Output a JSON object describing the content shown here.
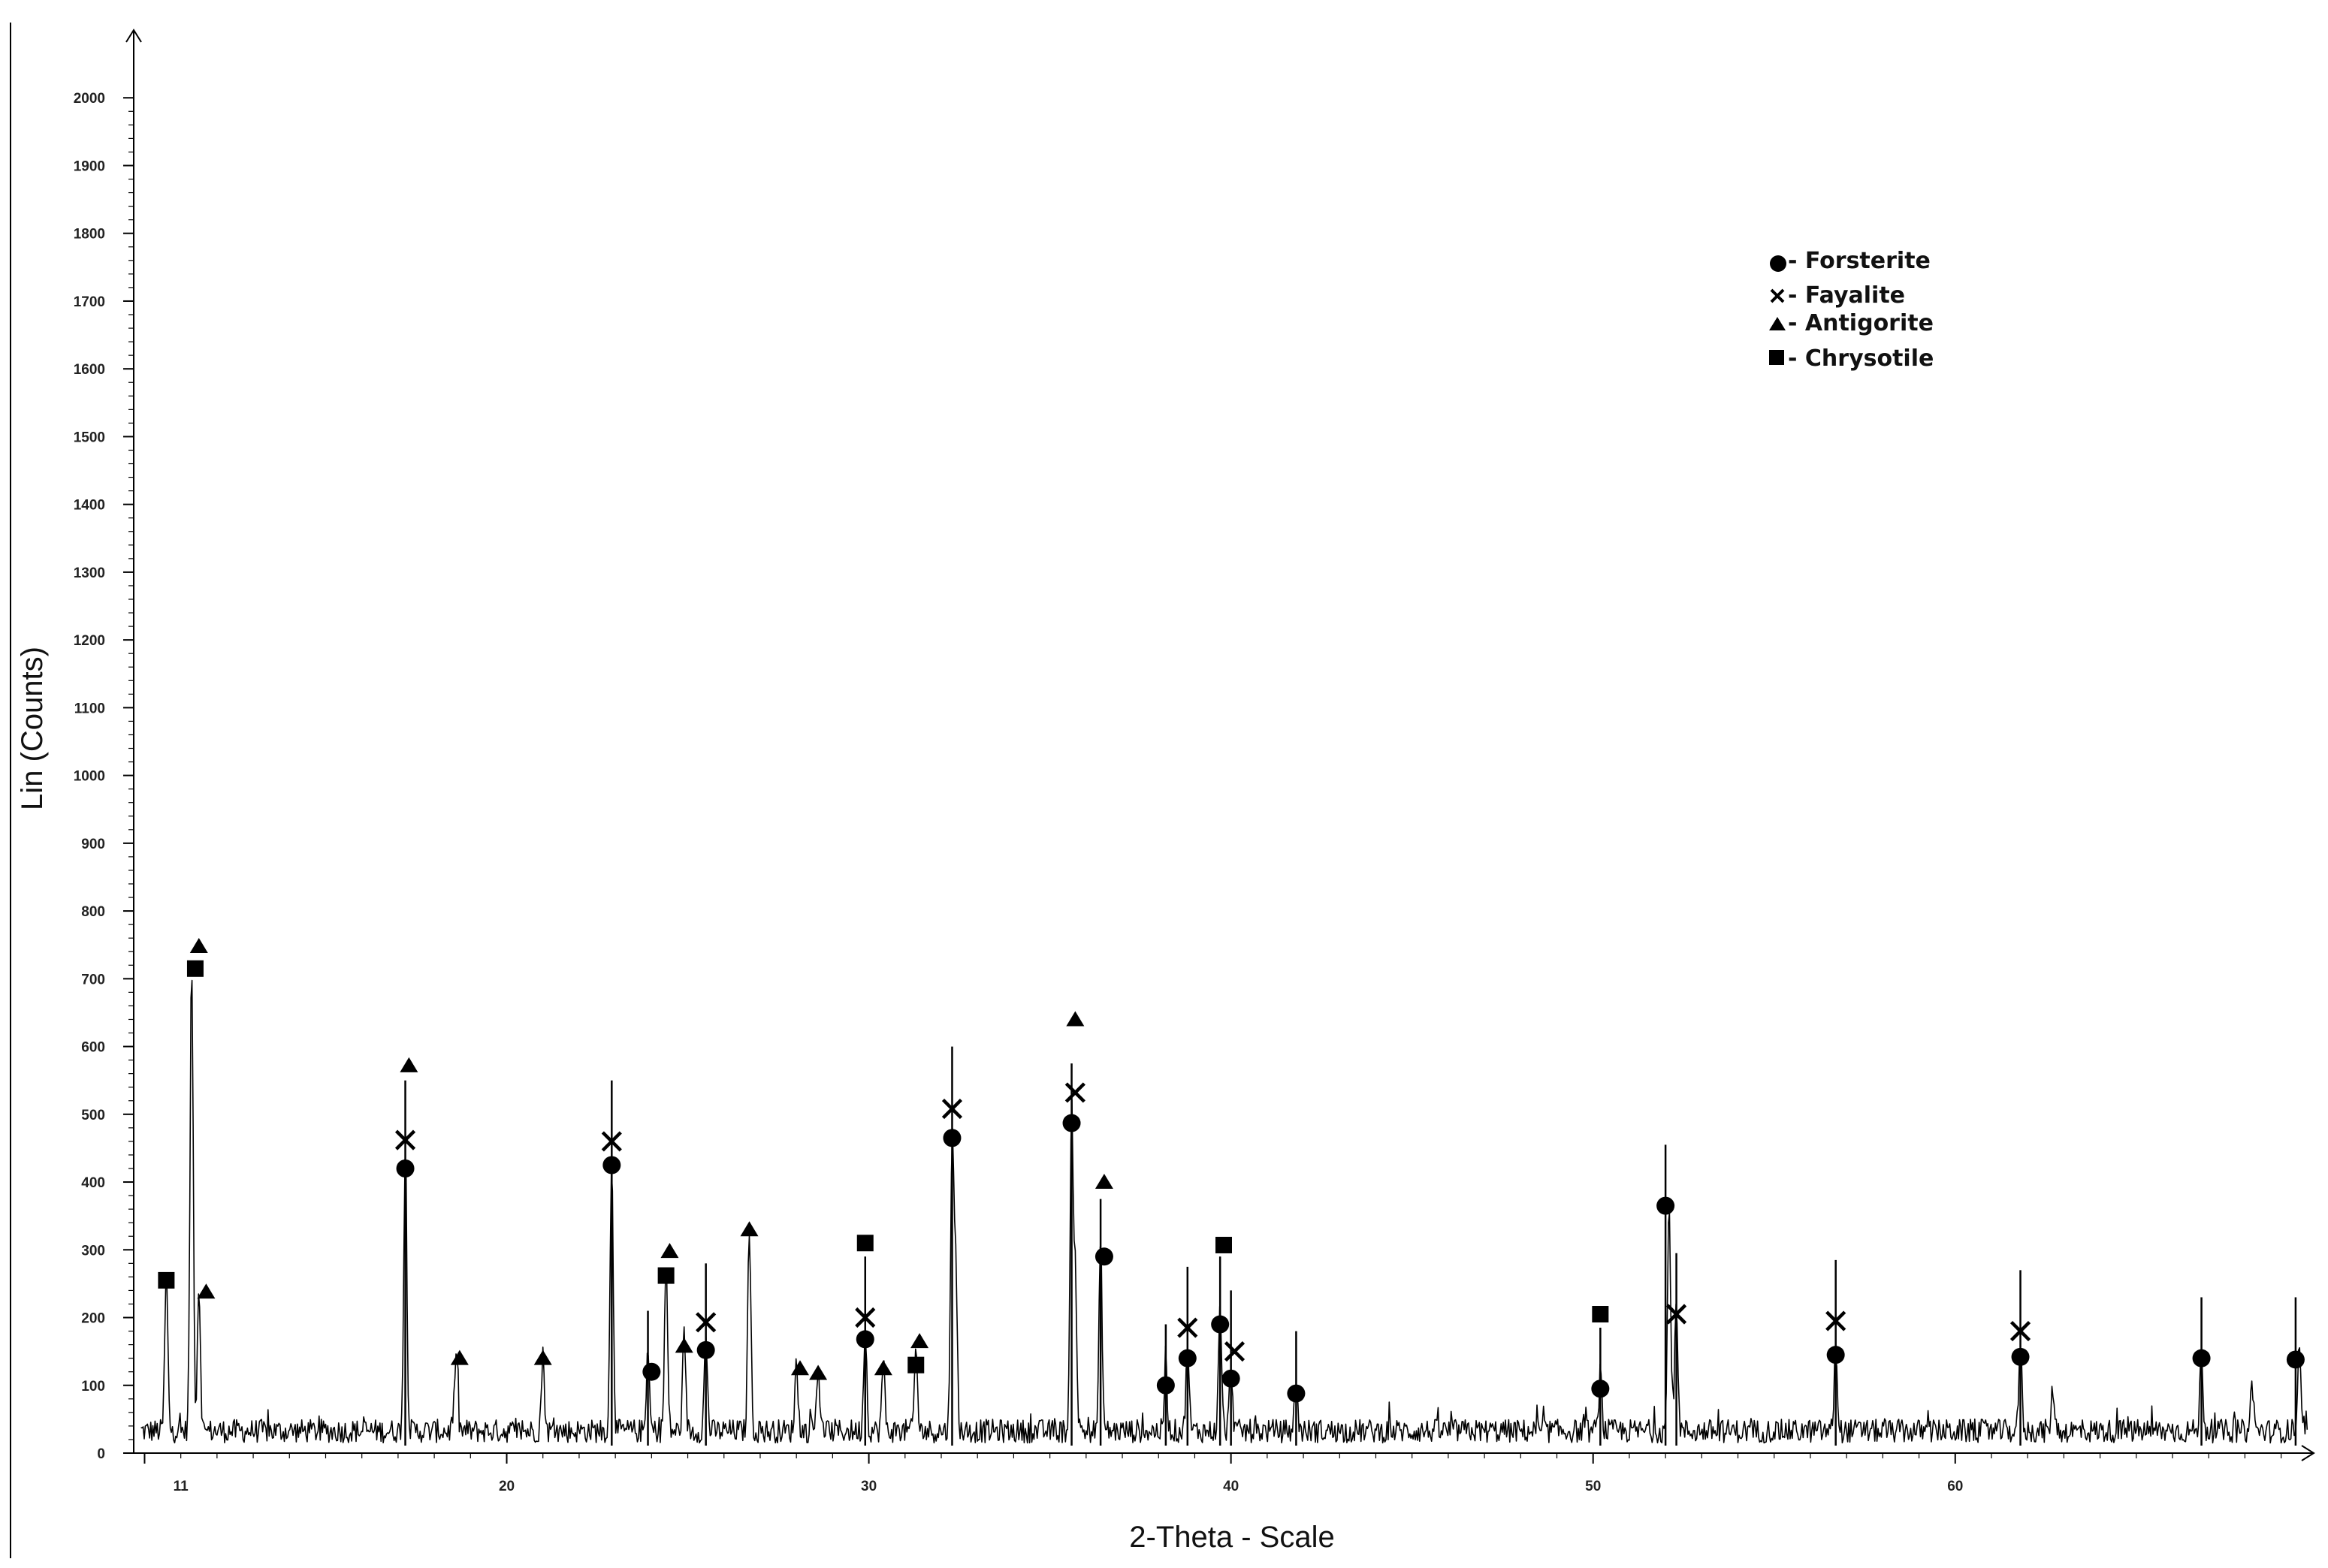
{
  "chart_data": {
    "type": "line",
    "title": "",
    "xlabel": "2-Theta - Scale",
    "ylabel": "Lin (Counts)",
    "xlim": [
      9.7,
      69.9
    ],
    "ylim": [
      0,
      2100
    ],
    "x_ticks": [
      11,
      20,
      30,
      40,
      50,
      60
    ],
    "y_ticks": [
      0,
      100,
      200,
      300,
      400,
      500,
      600,
      700,
      800,
      900,
      1000,
      1100,
      1200,
      1300,
      1400,
      1500,
      1600,
      1700,
      1800,
      1900,
      2000
    ],
    "grid": false,
    "baseline_counts": 25,
    "peaks": [
      {
        "x": 10.6,
        "y": 230
      },
      {
        "x": 11.3,
        "y": 695
      },
      {
        "x": 11.5,
        "y": 215
      },
      {
        "x": 17.2,
        "y": 410
      },
      {
        "x": 18.6,
        "y": 115
      },
      {
        "x": 21.0,
        "y": 110
      },
      {
        "x": 22.9,
        "y": 405
      },
      {
        "x": 23.9,
        "y": 110
      },
      {
        "x": 24.4,
        "y": 245
      },
      {
        "x": 24.9,
        "y": 130
      },
      {
        "x": 25.5,
        "y": 140
      },
      {
        "x": 26.7,
        "y": 305
      },
      {
        "x": 28.0,
        "y": 100
      },
      {
        "x": 28.6,
        "y": 95
      },
      {
        "x": 29.9,
        "y": 150
      },
      {
        "x": 30.4,
        "y": 100
      },
      {
        "x": 31.3,
        "y": 120
      },
      {
        "x": 32.3,
        "y": 440
      },
      {
        "x": 32.4,
        "y": 240
      },
      {
        "x": 35.6,
        "y": 460
      },
      {
        "x": 35.7,
        "y": 230
      },
      {
        "x": 36.4,
        "y": 275
      },
      {
        "x": 38.2,
        "y": 90
      },
      {
        "x": 38.8,
        "y": 125
      },
      {
        "x": 39.7,
        "y": 175
      },
      {
        "x": 40.0,
        "y": 95
      },
      {
        "x": 41.8,
        "y": 75
      },
      {
        "x": 50.2,
        "y": 80
      },
      {
        "x": 52.1,
        "y": 335
      },
      {
        "x": 52.3,
        "y": 190
      },
      {
        "x": 56.7,
        "y": 120
      },
      {
        "x": 61.8,
        "y": 120
      },
      {
        "x": 62.7,
        "y": 65
      },
      {
        "x": 66.8,
        "y": 115
      },
      {
        "x": 68.2,
        "y": 70
      },
      {
        "x": 69.5,
        "y": 115
      }
    ],
    "markers": [
      {
        "phase": "chrysotile",
        "x": 10.6,
        "y": 255
      },
      {
        "phase": "antigorite",
        "x": 11.5,
        "y": 748
      },
      {
        "phase": "chrysotile",
        "x": 11.4,
        "y": 715
      },
      {
        "phase": "antigorite",
        "x": 11.7,
        "y": 238
      },
      {
        "phase": "antigorite",
        "x": 17.3,
        "y": 572
      },
      {
        "phase": "fayalite",
        "x": 17.2,
        "y": 462
      },
      {
        "phase": "forsterite",
        "x": 17.2,
        "y": 420
      },
      {
        "phase": "antigorite",
        "x": 18.7,
        "y": 140
      },
      {
        "phase": "antigorite",
        "x": 21.0,
        "y": 140
      },
      {
        "phase": "fayalite",
        "x": 22.9,
        "y": 460
      },
      {
        "phase": "forsterite",
        "x": 22.9,
        "y": 425
      },
      {
        "phase": "forsterite",
        "x": 24.0,
        "y": 120
      },
      {
        "phase": "antigorite",
        "x": 24.5,
        "y": 298
      },
      {
        "phase": "chrysotile",
        "x": 24.4,
        "y": 262
      },
      {
        "phase": "antigorite",
        "x": 24.9,
        "y": 158
      },
      {
        "phase": "fayalite",
        "x": 25.5,
        "y": 193
      },
      {
        "phase": "forsterite",
        "x": 25.5,
        "y": 152
      },
      {
        "phase": "antigorite",
        "x": 26.7,
        "y": 330
      },
      {
        "phase": "antigorite",
        "x": 28.1,
        "y": 125
      },
      {
        "phase": "antigorite",
        "x": 28.6,
        "y": 118
      },
      {
        "phase": "chrysotile",
        "x": 29.9,
        "y": 310
      },
      {
        "phase": "fayalite",
        "x": 29.9,
        "y": 200
      },
      {
        "phase": "forsterite",
        "x": 29.9,
        "y": 168
      },
      {
        "phase": "antigorite",
        "x": 30.4,
        "y": 125
      },
      {
        "phase": "antigorite",
        "x": 31.4,
        "y": 165
      },
      {
        "phase": "chrysotile",
        "x": 31.3,
        "y": 130
      },
      {
        "phase": "fayalite",
        "x": 32.3,
        "y": 508
      },
      {
        "phase": "forsterite",
        "x": 32.3,
        "y": 465
      },
      {
        "phase": "antigorite",
        "x": 35.7,
        "y": 640
      },
      {
        "phase": "fayalite",
        "x": 35.7,
        "y": 532
      },
      {
        "phase": "forsterite",
        "x": 35.6,
        "y": 487
      },
      {
        "phase": "antigorite",
        "x": 36.5,
        "y": 400
      },
      {
        "phase": "forsterite",
        "x": 36.5,
        "y": 290
      },
      {
        "phase": "forsterite",
        "x": 38.2,
        "y": 100
      },
      {
        "phase": "fayalite",
        "x": 38.8,
        "y": 185
      },
      {
        "phase": "forsterite",
        "x": 38.8,
        "y": 140
      },
      {
        "phase": "chrysotile",
        "x": 39.8,
        "y": 307
      },
      {
        "phase": "forsterite",
        "x": 39.7,
        "y": 190
      },
      {
        "phase": "fayalite",
        "x": 40.1,
        "y": 150
      },
      {
        "phase": "forsterite",
        "x": 40.0,
        "y": 110
      },
      {
        "phase": "forsterite",
        "x": 41.8,
        "y": 88
      },
      {
        "phase": "chrysotile",
        "x": 50.2,
        "y": 205
      },
      {
        "phase": "forsterite",
        "x": 50.2,
        "y": 95
      },
      {
        "phase": "forsterite",
        "x": 52.0,
        "y": 365
      },
      {
        "phase": "fayalite",
        "x": 52.3,
        "y": 205
      },
      {
        "phase": "fayalite",
        "x": 56.7,
        "y": 195
      },
      {
        "phase": "forsterite",
        "x": 56.7,
        "y": 145
      },
      {
        "phase": "fayalite",
        "x": 61.8,
        "y": 180
      },
      {
        "phase": "forsterite",
        "x": 61.8,
        "y": 142
      },
      {
        "phase": "forsterite",
        "x": 66.8,
        "y": 140
      },
      {
        "phase": "forsterite",
        "x": 69.4,
        "y": 138
      }
    ],
    "reference_lines": [
      {
        "x": 17.2,
        "y": 550
      },
      {
        "x": 22.9,
        "y": 550
      },
      {
        "x": 23.9,
        "y": 210
      },
      {
        "x": 25.5,
        "y": 280
      },
      {
        "x": 29.9,
        "y": 290
      },
      {
        "x": 32.3,
        "y": 600
      },
      {
        "x": 35.6,
        "y": 575
      },
      {
        "x": 36.4,
        "y": 375
      },
      {
        "x": 38.2,
        "y": 190
      },
      {
        "x": 38.8,
        "y": 275
      },
      {
        "x": 39.7,
        "y": 290
      },
      {
        "x": 40.0,
        "y": 240
      },
      {
        "x": 41.8,
        "y": 180
      },
      {
        "x": 50.2,
        "y": 185
      },
      {
        "x": 52.0,
        "y": 455
      },
      {
        "x": 52.3,
        "y": 295
      },
      {
        "x": 56.7,
        "y": 285
      },
      {
        "x": 61.8,
        "y": 270
      },
      {
        "x": 66.8,
        "y": 230
      },
      {
        "x": 69.4,
        "y": 230
      }
    ],
    "legend": {
      "placement": "top-right",
      "entries": [
        {
          "symbol": "circle",
          "label": "- Forsterite"
        },
        {
          "symbol": "cross",
          "label": "- Fayalite"
        },
        {
          "symbol": "triangle",
          "label": "- Antigorite"
        },
        {
          "symbol": "square",
          "label": "- Chrysotile"
        }
      ]
    },
    "colors": {
      "trace": "#000000",
      "markers": "#000000",
      "axes": "#000000",
      "background": "#ffffff"
    }
  }
}
